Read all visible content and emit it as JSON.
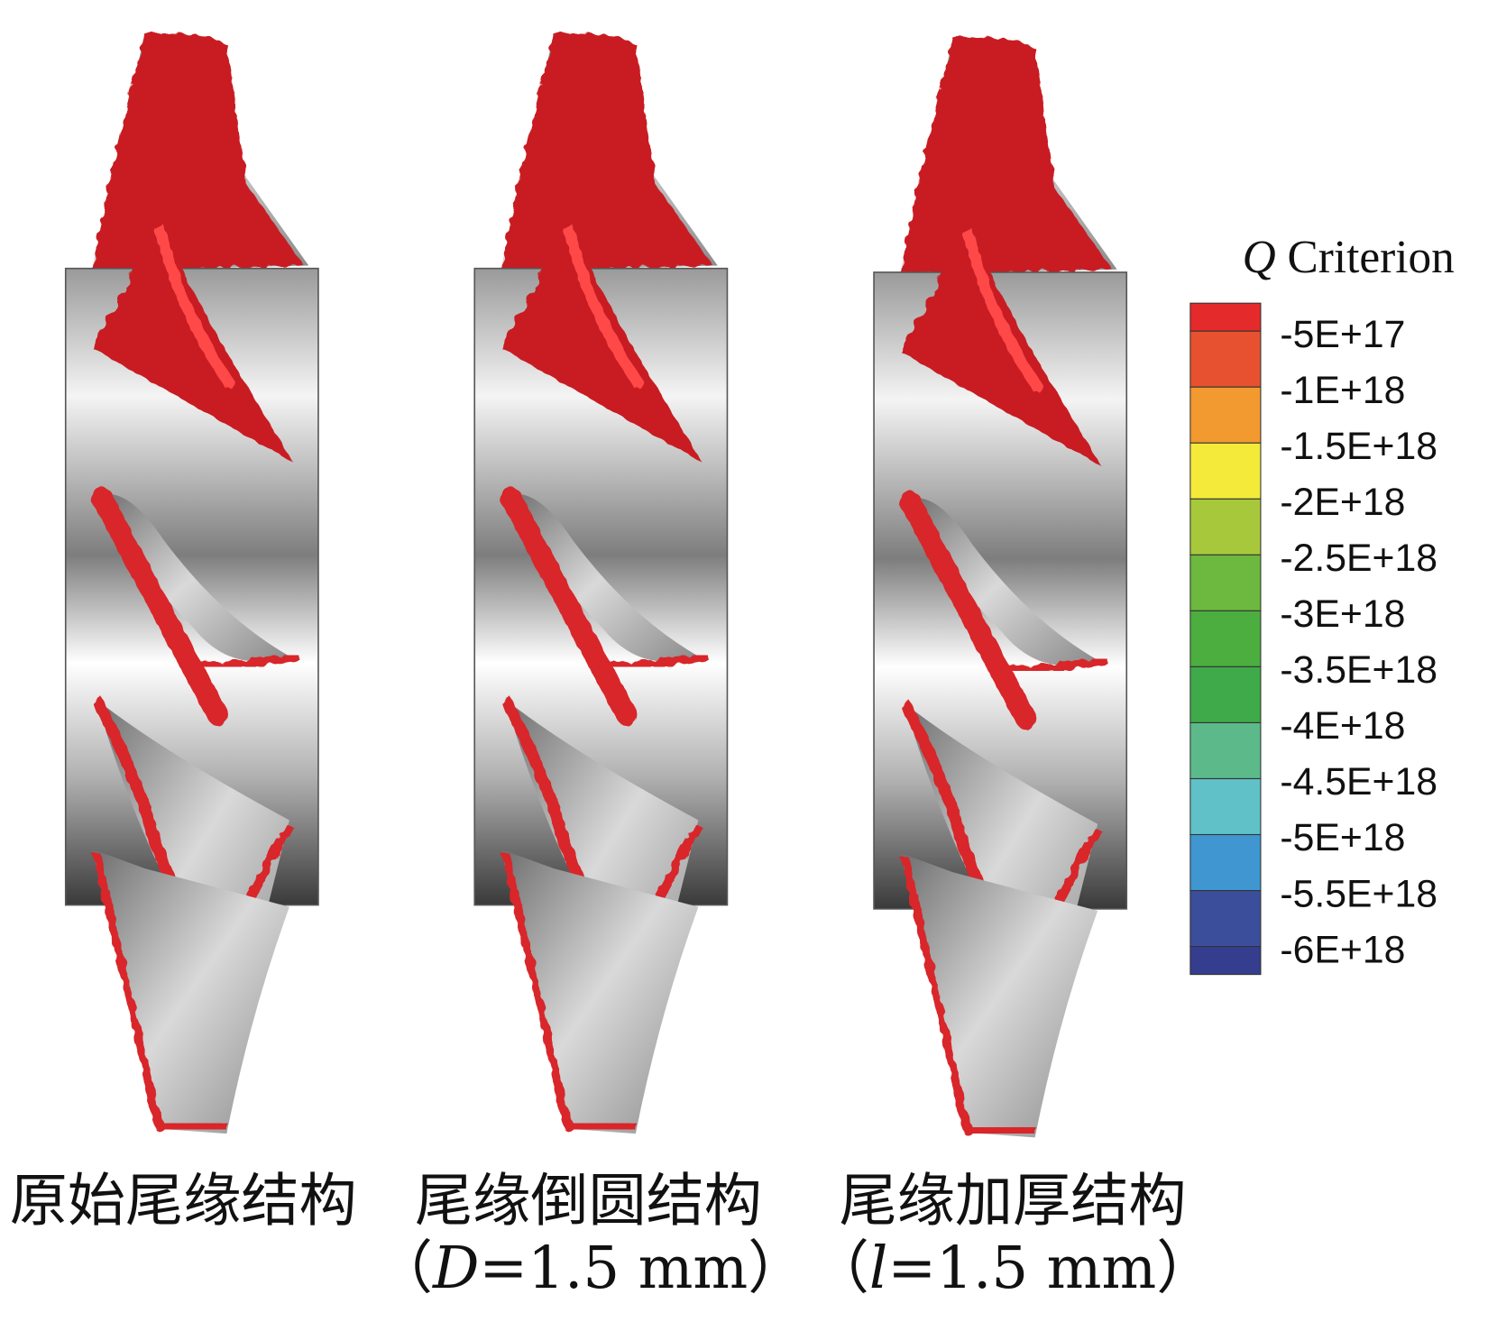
{
  "legend": {
    "title": [
      "Q",
      " Criterion"
    ],
    "labels": [
      "-5E+17",
      "-1E+18",
      "-1.5E+18",
      "-2E+18",
      "-2.5E+18",
      "-3E+18",
      "-3.5E+18",
      "-4E+18",
      "-4.5E+18",
      "-5E+18",
      "-5.5E+18",
      "-6E+18"
    ],
    "colors": [
      "#e52a2b",
      "#e8512f",
      "#f2992f",
      "#f3ea3a",
      "#a8c83c",
      "#6db83f",
      "#4cae3f",
      "#3faa49",
      "#5cba8a",
      "#60c1c8",
      "#3f96d1",
      "#3b4e9b",
      "#343d8e"
    ]
  },
  "captions": [
    {
      "lines": [
        [
          "原始尾缘结构"
        ]
      ]
    },
    {
      "lines": [
        [
          "尾缘倒圆结构"
        ],
        [
          "（",
          "D",
          "=1.5 mm）"
        ]
      ]
    },
    {
      "lines": [
        [
          "尾缘加厚结构"
        ],
        [
          "（",
          "l",
          "=1.5 mm）"
        ]
      ]
    }
  ]
}
